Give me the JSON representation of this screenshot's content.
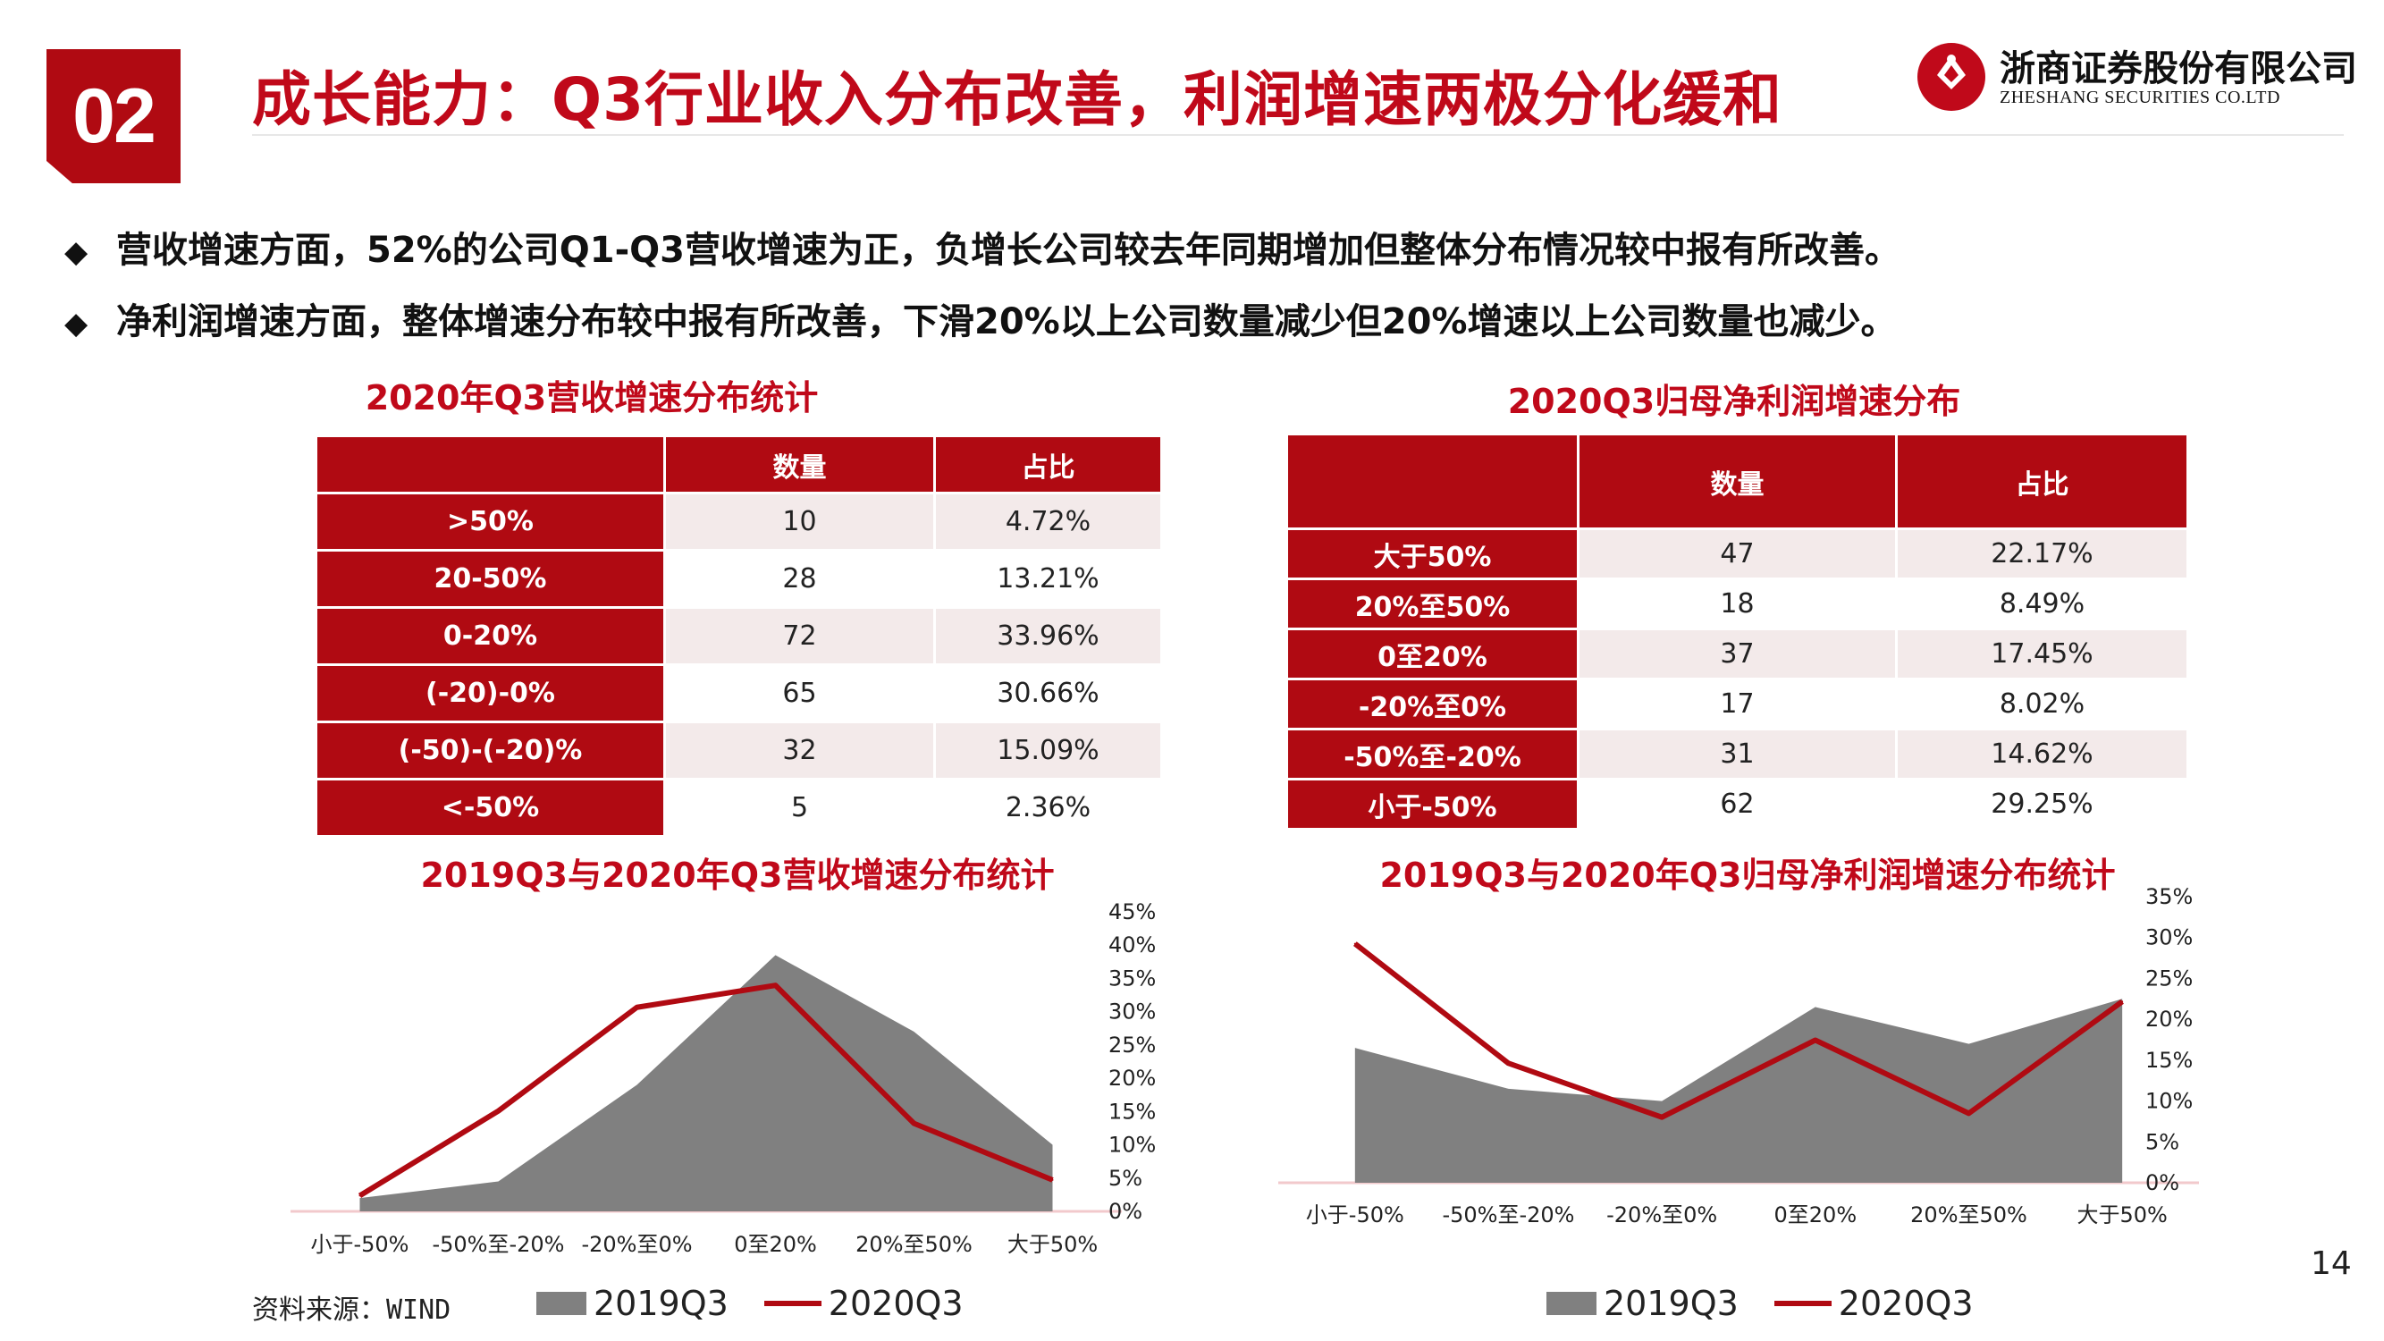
{
  "header": {
    "section_number": "02",
    "title": "成长能力：Q3行业收入分布改善，利润增速两极分化缓和",
    "logo_cn": "浙商证券股份有限公司",
    "logo_en": "ZHESHANG SECURITIES CO.LTD"
  },
  "bullets": [
    "营收增速方面，52%的公司Q1-Q3营收增速为正，负增长公司较去年同期增加但整体分布情况较中报有所改善。",
    "净利润增速方面，整体增速分布较中报有所改善，下滑20%以上公司数量减少但20%增速以上公司数量也减少。"
  ],
  "table_left": {
    "title": "2020年Q3营收增速分布统计",
    "headers": [
      "",
      "数量",
      "占比"
    ],
    "rows": [
      [
        ">50%",
        "10",
        "4.72%"
      ],
      [
        "20-50%",
        "28",
        "13.21%"
      ],
      [
        "0-20%",
        "72",
        "33.96%"
      ],
      [
        "(-20)-0%",
        "65",
        "30.66%"
      ],
      [
        "(-50)-(-20)%",
        "32",
        "15.09%"
      ],
      [
        "<-50%",
        "5",
        "2.36%"
      ]
    ]
  },
  "table_right": {
    "title": "2020Q3归母净利润增速分布",
    "headers": [
      "",
      "数量",
      "占比"
    ],
    "rows": [
      [
        "大于50%",
        "47",
        "22.17%"
      ],
      [
        "20%至50%",
        "18",
        "8.49%"
      ],
      [
        "0至20%",
        "37",
        "17.45%"
      ],
      [
        "-20%至0%",
        "17",
        "8.02%"
      ],
      [
        "-50%至-20%",
        "31",
        "14.62%"
      ],
      [
        "小于-50%",
        "62",
        "29.25%"
      ]
    ]
  },
  "chart_data": [
    {
      "type": "area",
      "title": "2019Q3与2020年Q3营收增速分布统计",
      "categories": [
        "小于-50%",
        "-50%至-20%",
        "-20%至0%",
        "0至20%",
        "20%至50%",
        "大于50%"
      ],
      "series": [
        {
          "name": "2019Q3",
          "type": "area",
          "color": "#808080",
          "values": [
            2,
            4.5,
            19,
            38.5,
            27,
            10
          ]
        },
        {
          "name": "2020Q3",
          "type": "line",
          "color": "#b00a12",
          "values": [
            2.36,
            15.09,
            30.66,
            33.96,
            13.21,
            4.72
          ]
        }
      ],
      "y_ticks": [
        "0%",
        "5%",
        "10%",
        "15%",
        "20%",
        "25%",
        "30%",
        "35%",
        "40%",
        "45%"
      ],
      "ylim": [
        0,
        45
      ],
      "axis_position": "right",
      "legend_position": "bottom"
    },
    {
      "type": "area",
      "title": "2019Q3与2020年Q3归母净利润增速分布统计",
      "categories": [
        "小于-50%",
        "-50%至-20%",
        "-20%至0%",
        "0至20%",
        "20%至50%",
        "大于50%"
      ],
      "series": [
        {
          "name": "2019Q3",
          "type": "area",
          "color": "#808080",
          "values": [
            16.5,
            11.5,
            10,
            21.5,
            17,
            22.5
          ]
        },
        {
          "name": "2020Q3",
          "type": "line",
          "color": "#b00a12",
          "values": [
            29.25,
            14.62,
            8.02,
            17.45,
            8.49,
            22.17
          ]
        }
      ],
      "y_ticks": [
        "0%",
        "5%",
        "10%",
        "15%",
        "20%",
        "25%",
        "30%",
        "35%"
      ],
      "ylim": [
        0,
        35
      ],
      "axis_position": "right",
      "legend_position": "bottom"
    }
  ],
  "legend": {
    "area_label": "2019Q3",
    "line_label": "2020Q3"
  },
  "source": "资料来源：WIND",
  "page_number": "14"
}
